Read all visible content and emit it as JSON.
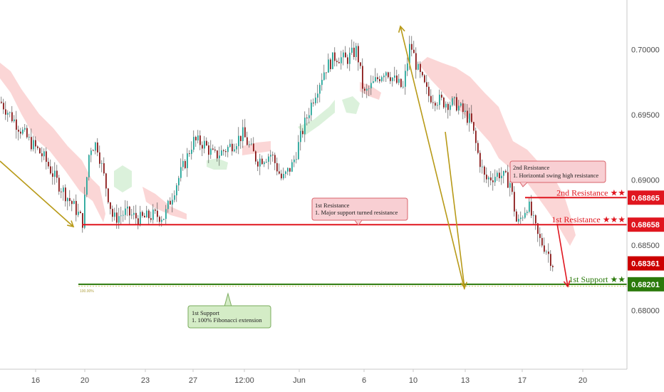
{
  "chart_data": {
    "type": "candlestick",
    "y_axis": {
      "range": [
        0.6755,
        0.7038
      ],
      "ticks": [
        "0.68000",
        "0.68500",
        "0.69000",
        "0.69500",
        "0.70000"
      ],
      "tick_values": [
        0.68,
        0.685,
        0.69,
        0.695,
        0.7
      ]
    },
    "x_axis": {
      "ticks": [
        "16",
        "20",
        "23",
        "27",
        "12:00",
        "Jun",
        "6",
        "10",
        "13",
        "17",
        "20"
      ]
    },
    "price_path": [
      [
        0,
        0.696
      ],
      [
        20,
        0.6945
      ],
      [
        40,
        0.693
      ],
      [
        60,
        0.6918
      ],
      [
        80,
        0.6898
      ],
      [
        105,
        0.6878
      ],
      [
        115,
        0.6868
      ],
      [
        125,
        0.6925
      ],
      [
        135,
        0.6928
      ],
      [
        150,
        0.689
      ],
      [
        158,
        0.687
      ],
      [
        175,
        0.6875
      ],
      [
        195,
        0.687
      ],
      [
        215,
        0.6873
      ],
      [
        230,
        0.6872
      ],
      [
        245,
        0.6895
      ],
      [
        260,
        0.6915
      ],
      [
        270,
        0.693
      ],
      [
        285,
        0.6928
      ],
      [
        300,
        0.6918
      ],
      [
        320,
        0.6925
      ],
      [
        340,
        0.6935
      ],
      [
        360,
        0.6915
      ],
      [
        380,
        0.692
      ],
      [
        395,
        0.69
      ],
      [
        410,
        0.6912
      ],
      [
        425,
        0.694
      ],
      [
        440,
        0.6965
      ],
      [
        455,
        0.6985
      ],
      [
        470,
        0.6995
      ],
      [
        485,
        0.6992
      ],
      [
        500,
        0.7
      ],
      [
        510,
        0.6965
      ],
      [
        525,
        0.6975
      ],
      [
        540,
        0.6985
      ],
      [
        555,
        0.6975
      ],
      [
        565,
        0.697
      ],
      [
        575,
        0.7005
      ],
      [
        585,
        0.6985
      ],
      [
        600,
        0.6965
      ],
      [
        620,
        0.696
      ],
      [
        640,
        0.6958
      ],
      [
        660,
        0.6945
      ],
      [
        670,
        0.692
      ],
      [
        680,
        0.69
      ],
      [
        700,
        0.6905
      ],
      [
        715,
        0.6898
      ],
      [
        725,
        0.6865
      ],
      [
        740,
        0.6882
      ],
      [
        755,
        0.6855
      ],
      [
        765,
        0.6848
      ],
      [
        775,
        0.6836
      ]
    ],
    "levels": [
      {
        "name": "2nd Resistance ★★",
        "value": 0.68865,
        "label": "0.68865",
        "color": "#e0161f"
      },
      {
        "name": "1st Resistance ★★★",
        "value": 0.68658,
        "label": "0.68658",
        "color": "#e0161f"
      },
      {
        "name": "1st Support ★★",
        "value": 0.68201,
        "label": "0.68201",
        "color": "#2b7a0b"
      }
    ],
    "last_price": {
      "value": 0.68361,
      "label": "0.68361",
      "color": "#cc0000"
    },
    "annotations": [
      {
        "title": "2nd Resistance",
        "text": "1. Horizontal swing high resistance"
      },
      {
        "title": "1st Resistance",
        "text": "1. Major support turned resistance"
      },
      {
        "title": "1st Support",
        "text": "1. 100% Fibonacci extension"
      }
    ],
    "fib_label": "100.00%",
    "colors": {
      "up": "#26a69a",
      "down": "#8b1a1a",
      "cloud_red": "#f9c8c8",
      "cloud_green": "#cfeccf",
      "arrow_gold": "#b89a18"
    },
    "grid": false
  }
}
